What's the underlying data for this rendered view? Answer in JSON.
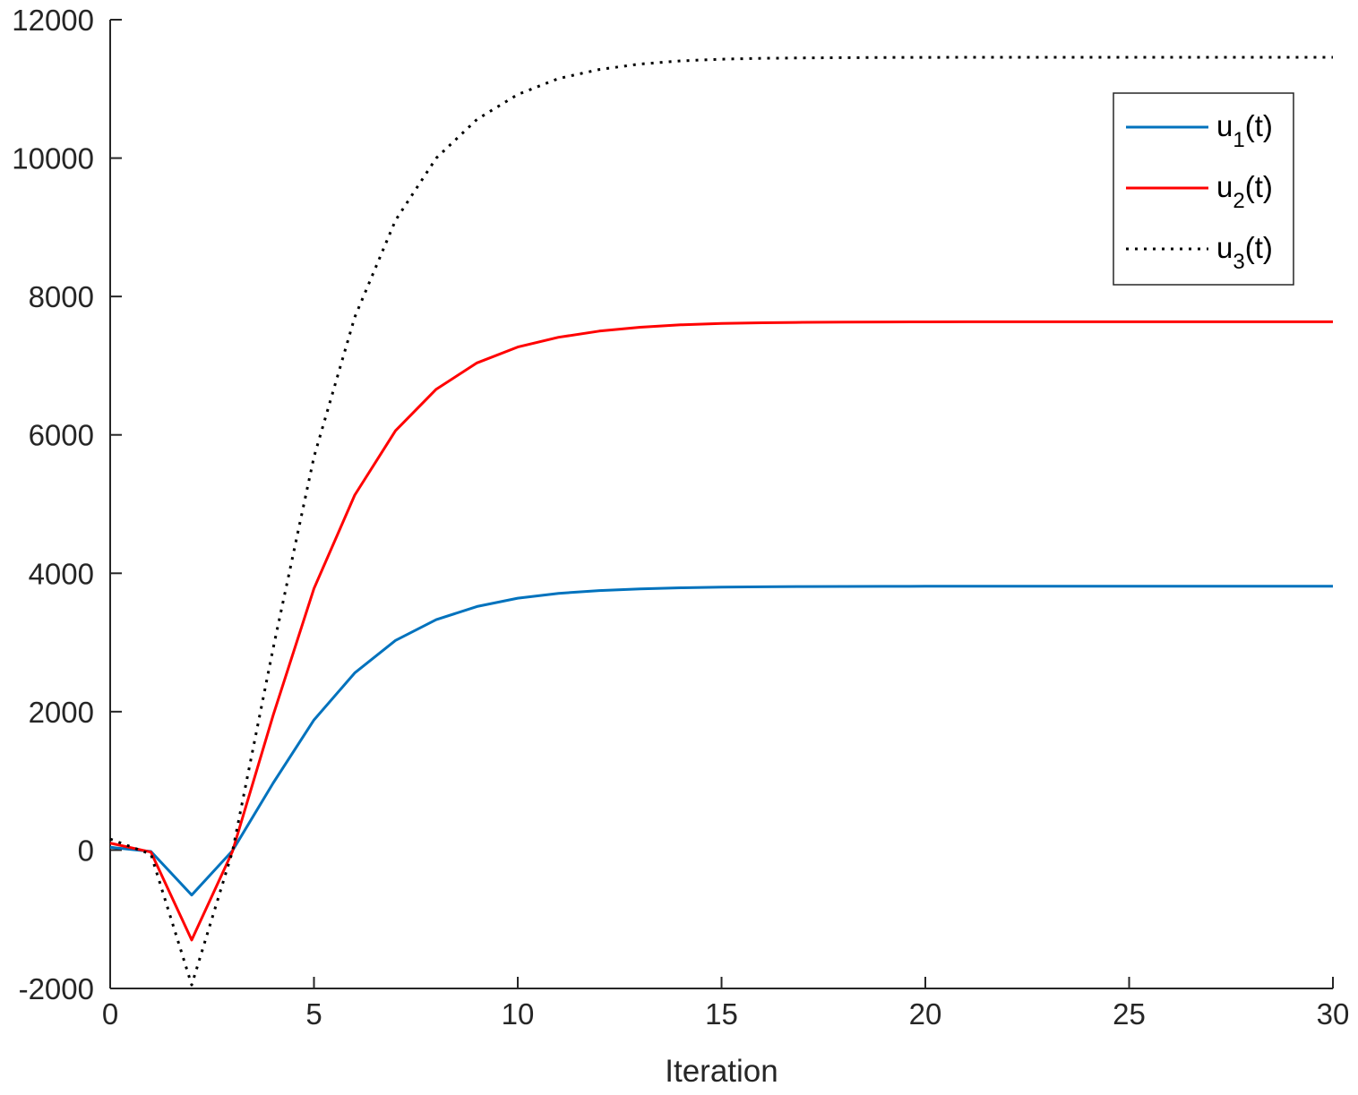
{
  "chart_data": {
    "type": "line",
    "title": "",
    "xlabel": "Iteration",
    "ylabel": "",
    "xlim": [
      0,
      30
    ],
    "ylim": [
      -2000,
      12000
    ],
    "xticks": [
      0,
      5,
      10,
      15,
      20,
      25,
      30
    ],
    "yticks": [
      -2000,
      0,
      2000,
      4000,
      6000,
      8000,
      10000,
      12000
    ],
    "xtick_labels": [
      "0",
      "5",
      "10",
      "15",
      "20",
      "25",
      "30"
    ],
    "ytick_labels": [
      "-2000",
      "0",
      "2000",
      "4000",
      "6000",
      "8000",
      "10000",
      "12000"
    ],
    "grid": false,
    "legend_position": "top-right",
    "x": [
      0,
      1,
      2,
      3,
      4,
      5,
      6,
      7,
      8,
      9,
      10,
      11,
      12,
      13,
      14,
      15,
      16,
      17,
      18,
      19,
      20,
      21,
      22,
      23,
      24,
      25,
      26,
      27,
      28,
      29,
      30
    ],
    "series": [
      {
        "name": "u1(t)",
        "legend_main": "u",
        "legend_sub": "1",
        "legend_suffix": "(t)",
        "color": "#0072BD",
        "style": "solid",
        "values": [
          40,
          -20,
          -650,
          -10,
          970,
          1880,
          2560,
          3030,
          3330,
          3520,
          3640,
          3710,
          3750,
          3775,
          3790,
          3800,
          3805,
          3808,
          3810,
          3811,
          3812,
          3812,
          3812,
          3812,
          3812,
          3812,
          3812,
          3812,
          3812,
          3812,
          3812
        ]
      },
      {
        "name": "u2(t)",
        "legend_main": "u",
        "legend_sub": "2",
        "legend_suffix": "(t)",
        "color": "#FF0000",
        "style": "solid",
        "values": [
          100,
          -30,
          -1300,
          -20,
          1950,
          3780,
          5130,
          6060,
          6660,
          7040,
          7270,
          7410,
          7500,
          7555,
          7590,
          7610,
          7620,
          7626,
          7630,
          7632,
          7633,
          7634,
          7634,
          7634,
          7634,
          7634,
          7634,
          7634,
          7634,
          7634,
          7634
        ]
      },
      {
        "name": "u3(t)",
        "legend_main": "u",
        "legend_sub": "3",
        "legend_suffix": "(t)",
        "color": "#000000",
        "style": "dotted",
        "values": [
          160,
          -60,
          -1950,
          -20,
          2920,
          5680,
          7700,
          9100,
          10000,
          10560,
          10920,
          11150,
          11280,
          11360,
          11405,
          11430,
          11442,
          11448,
          11452,
          11454,
          11455,
          11456,
          11456,
          11456,
          11456,
          11456,
          11456,
          11456,
          11456,
          11456,
          11456
        ]
      }
    ]
  }
}
